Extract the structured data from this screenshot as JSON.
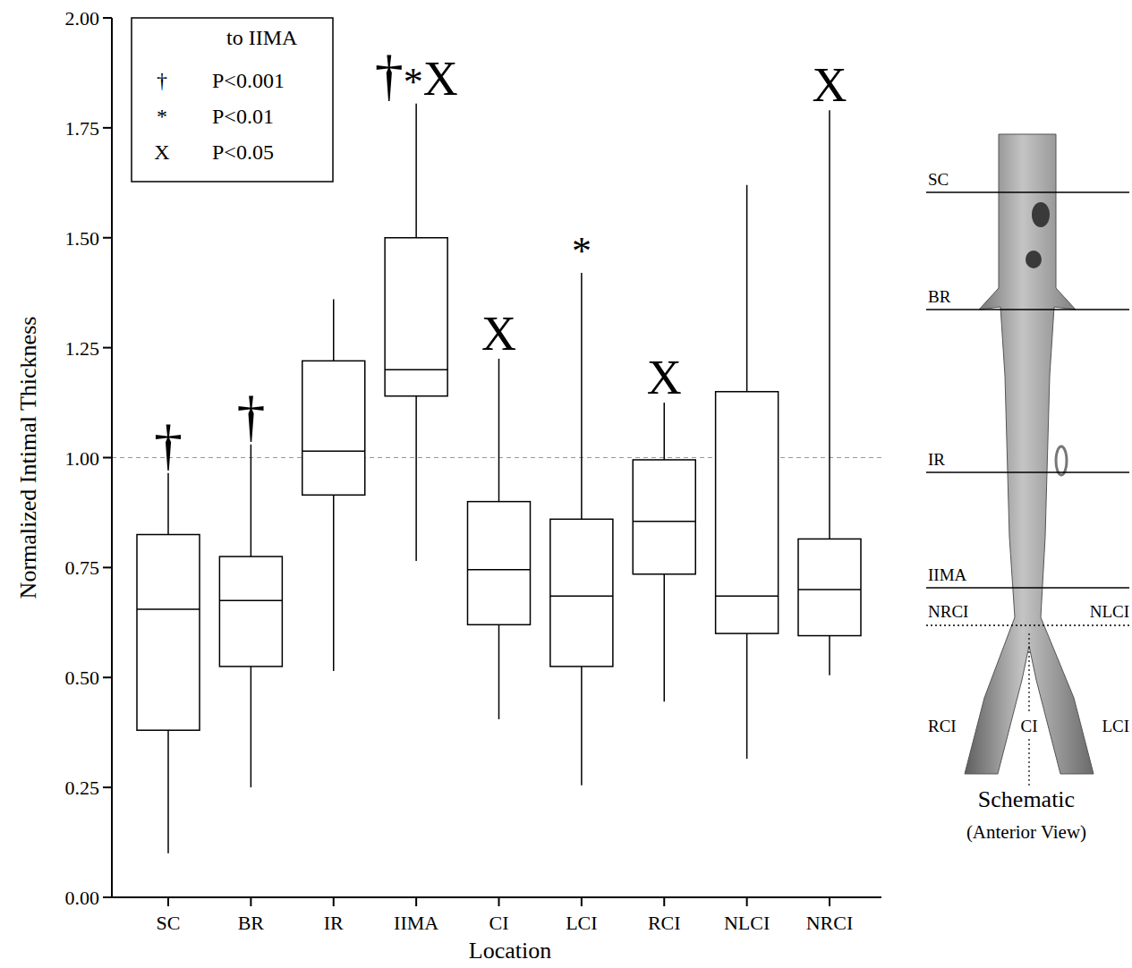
{
  "chart_data": {
    "type": "box",
    "x_label": "Location",
    "y_label": "Normalized Intimal Thickness",
    "categories": [
      "SC",
      "BR",
      "IR",
      "IIMA",
      "CI",
      "LCI",
      "RCI",
      "NLCI",
      "NRCI"
    ],
    "boxes": [
      {
        "min": 0.1,
        "q1": 0.38,
        "median": 0.655,
        "q3": 0.825,
        "max": 0.965
      },
      {
        "min": 0.25,
        "q1": 0.525,
        "median": 0.675,
        "q3": 0.775,
        "max": 1.03
      },
      {
        "min": 0.515,
        "q1": 0.915,
        "median": 1.015,
        "q3": 1.22,
        "max": 1.36
      },
      {
        "min": 0.765,
        "q1": 1.14,
        "median": 1.2,
        "q3": 1.5,
        "max": 1.805
      },
      {
        "min": 0.405,
        "q1": 0.62,
        "median": 0.745,
        "q3": 0.9,
        "max": 1.225
      },
      {
        "min": 0.255,
        "q1": 0.525,
        "median": 0.685,
        "q3": 0.86,
        "max": 1.42
      },
      {
        "min": 0.445,
        "q1": 0.735,
        "median": 0.855,
        "q3": 0.995,
        "max": 1.125
      },
      {
        "min": 0.315,
        "q1": 0.6,
        "median": 0.685,
        "q3": 1.15,
        "max": 1.62
      },
      {
        "min": 0.505,
        "q1": 0.595,
        "median": 0.7,
        "q3": 0.815,
        "max": 1.79
      }
    ],
    "annotations": [
      "†",
      "†",
      null,
      "†*X",
      "X",
      "*",
      "X",
      null,
      "X"
    ],
    "reference_line": 1,
    "ylim": [
      0,
      2
    ],
    "yticks": [
      {
        "value": 0,
        "label": "0.00"
      },
      {
        "value": 0.25,
        "label": "0.25"
      },
      {
        "value": 0.5,
        "label": "0.50"
      },
      {
        "value": 0.75,
        "label": "0.75"
      },
      {
        "value": 1,
        "label": "1.00"
      },
      {
        "value": 1.25,
        "label": "1.25"
      },
      {
        "value": 1.5,
        "label": "1.50"
      },
      {
        "value": 1.75,
        "label": "1.75"
      },
      {
        "value": 2,
        "label": "2.00"
      }
    ],
    "legend": "top-left",
    "legend_title": "to IIMA",
    "legend_entries": [
      {
        "symbol": "†",
        "label": "P<0.001"
      },
      {
        "symbol": "*",
        "label": "P<0.01"
      },
      {
        "symbol": "X",
        "label": "P<0.05"
      }
    ],
    "color": "#ffffff",
    "grid": false
  },
  "schematic": {
    "levels": [
      "SC",
      "BR",
      "IR",
      "IIMA"
    ],
    "dotted_left": "NRCI",
    "dotted_right": "NLCI",
    "branches": [
      "RCI",
      "CI",
      "LCI"
    ],
    "title": "Schematic",
    "subtitle": "(Anterior View)"
  }
}
